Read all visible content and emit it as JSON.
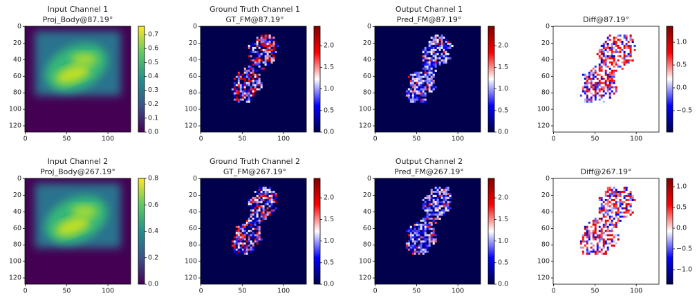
{
  "chart_data": [
    {
      "type": "image",
      "title": "Input Channel 1",
      "subtitle": "Proj_Body@87.19°",
      "xlim": [
        -0.5,
        127.5
      ],
      "ylim": [
        127.5,
        -0.5
      ],
      "xticks": [
        0,
        50,
        100
      ],
      "yticks": [
        0,
        20,
        40,
        60,
        80,
        100,
        120
      ],
      "colormap": "viridis",
      "clim": [
        0,
        0.76
      ],
      "cticks": [
        {
          "value": 0,
          "label": "0.0"
        },
        0.1,
        0.2,
        0.3,
        0.4,
        0.5,
        0.6,
        0.7
      ]
    },
    {
      "type": "image",
      "title": "Ground Truth Channel 1",
      "subtitle": "GT_FM@87.19°",
      "xlim": [
        -0.5,
        127.5
      ],
      "ylim": [
        127.5,
        -0.5
      ],
      "xticks": [
        0,
        50,
        100
      ],
      "yticks": [
        0,
        20,
        40,
        60,
        80,
        100,
        120
      ],
      "colormap": "seismic",
      "clim": [
        0,
        2.45
      ],
      "cticks": [
        {
          "value": 0,
          "label": "0.0"
        },
        0.5,
        {
          "value": 1,
          "label": "1.0"
        },
        1.5,
        {
          "value": 2,
          "label": "2.0"
        }
      ]
    },
    {
      "type": "image",
      "title": "Output Channel 1",
      "subtitle": "Pred_FM@87.19°",
      "xlim": [
        -0.5,
        127.5
      ],
      "ylim": [
        127.5,
        -0.5
      ],
      "xticks": [
        0,
        50,
        100
      ],
      "yticks": [
        0,
        20,
        40,
        60,
        80,
        100,
        120
      ],
      "colormap": "seismic",
      "clim": [
        0,
        2.45
      ],
      "cticks": [
        {
          "value": 0,
          "label": "0.0"
        },
        0.5,
        {
          "value": 1,
          "label": "1.0"
        },
        1.5,
        {
          "value": 2,
          "label": "2.0"
        }
      ]
    },
    {
      "type": "image",
      "title": "Diff@87.19°",
      "xlim": [
        -0.5,
        127.5
      ],
      "ylim": [
        127.5,
        -0.5
      ],
      "xticks": [
        0,
        50,
        100
      ],
      "yticks": [
        0,
        20,
        40,
        60,
        80,
        100,
        120
      ],
      "colormap": "seismic",
      "clim": [
        -0.97,
        1.35
      ],
      "cticks": [
        {
          "value": -0.5,
          "label": "−0.5"
        },
        {
          "value": 0,
          "label": "0.0"
        },
        0.5,
        {
          "value": 1,
          "label": "1.0"
        }
      ]
    },
    {
      "type": "image",
      "title": "Input Channel 2",
      "subtitle": "Proj_Body@267.19°",
      "xlim": [
        -0.5,
        127.5
      ],
      "ylim": [
        127.5,
        -0.5
      ],
      "xticks": [
        0,
        50,
        100
      ],
      "yticks": [
        0,
        20,
        40,
        60,
        80,
        100,
        120
      ],
      "colormap": "viridis",
      "clim": [
        0,
        0.8
      ],
      "cticks": [
        {
          "value": 0,
          "label": "0.0"
        },
        0.2,
        0.4,
        0.6,
        0.8
      ]
    },
    {
      "type": "image",
      "title": "Ground Truth Channel 2",
      "subtitle": "GT_FM@267.19°",
      "xlim": [
        -0.5,
        127.5
      ],
      "ylim": [
        127.5,
        -0.5
      ],
      "xticks": [
        0,
        50,
        100
      ],
      "yticks": [
        0,
        20,
        40,
        60,
        80,
        100,
        120
      ],
      "colormap": "seismic",
      "clim": [
        0,
        2.45
      ],
      "cticks": [
        {
          "value": 0,
          "label": "0.0"
        },
        0.5,
        {
          "value": 1,
          "label": "1.0"
        },
        1.5,
        {
          "value": 2,
          "label": "2.0"
        }
      ]
    },
    {
      "type": "image",
      "title": "Output Channel 2",
      "subtitle": "Pred_FM@267.19°",
      "xlim": [
        -0.5,
        127.5
      ],
      "ylim": [
        127.5,
        -0.5
      ],
      "xticks": [
        0,
        50,
        100
      ],
      "yticks": [
        0,
        20,
        40,
        60,
        80,
        100,
        120
      ],
      "colormap": "seismic",
      "clim": [
        0,
        2.45
      ],
      "cticks": [
        {
          "value": 0,
          "label": "0.0"
        },
        0.5,
        {
          "value": 1,
          "label": "1.0"
        },
        1.5,
        {
          "value": 2,
          "label": "2.0"
        }
      ]
    },
    {
      "type": "image",
      "title": "Diff@267.19°",
      "xlim": [
        -0.5,
        127.5
      ],
      "ylim": [
        127.5,
        -0.5
      ],
      "xticks": [
        0,
        50,
        100
      ],
      "yticks": [
        0,
        20,
        40,
        60,
        80,
        100,
        120
      ],
      "colormap": "seismic",
      "clim": [
        -1.35,
        1.2
      ],
      "cticks": [
        {
          "value": -1,
          "label": "−1.0"
        },
        {
          "value": -0.5,
          "label": "−0.5"
        },
        {
          "value": 0,
          "label": "0.0"
        },
        0.5,
        {
          "value": 1,
          "label": "1.0"
        }
      ]
    }
  ]
}
